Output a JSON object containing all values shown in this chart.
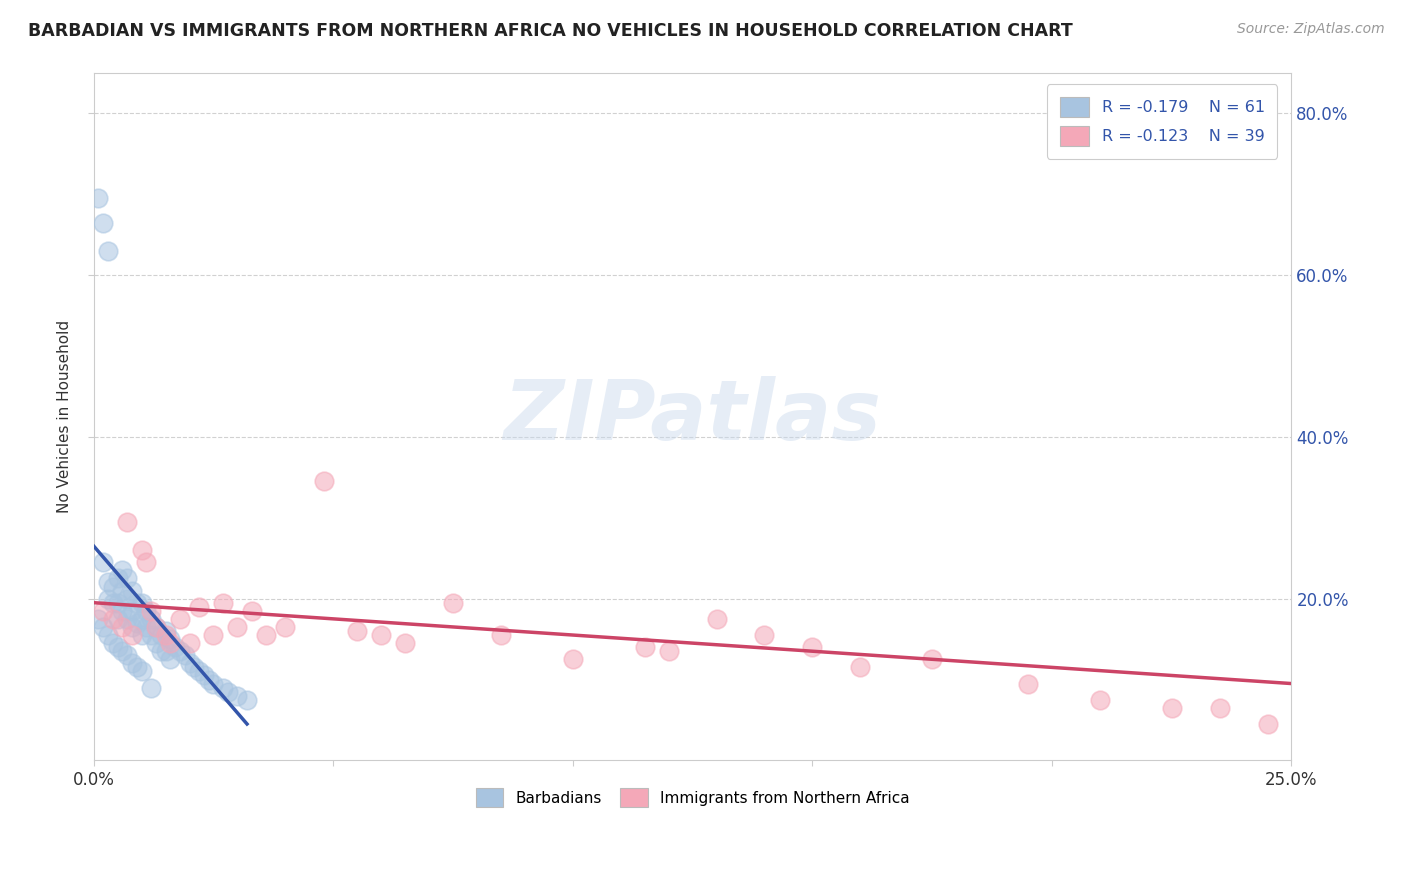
{
  "title": "BARBADIAN VS IMMIGRANTS FROM NORTHERN AFRICA NO VEHICLES IN HOUSEHOLD CORRELATION CHART",
  "source": "Source: ZipAtlas.com",
  "ylabel": "No Vehicles in Household",
  "xlim": [
    0.0,
    0.25
  ],
  "ylim": [
    0.0,
    0.85
  ],
  "xticks": [
    0.0,
    0.05,
    0.1,
    0.15,
    0.2,
    0.25
  ],
  "yticks": [
    0.2,
    0.4,
    0.6,
    0.8
  ],
  "ytick_labels": [
    "20.0%",
    "40.0%",
    "60.0%",
    "80.0%"
  ],
  "xtick_labels": [
    "0.0%",
    "",
    "",
    "",
    "",
    "25.0%"
  ],
  "legend_R1": "R = -0.179",
  "legend_N1": "N = 61",
  "legend_R2": "R = -0.123",
  "legend_N2": "N = 39",
  "color_barbadian": "#a8c4e0",
  "color_immigrant": "#f4a8b8",
  "line_color_barbadian": "#3355aa",
  "line_color_immigrant": "#cc4466",
  "background_color": "#ffffff",
  "grid_color": "#cccccc",
  "barbadian_scatter_x": [
    0.001,
    0.002,
    0.002,
    0.003,
    0.003,
    0.003,
    0.004,
    0.004,
    0.005,
    0.005,
    0.005,
    0.006,
    0.006,
    0.006,
    0.007,
    0.007,
    0.007,
    0.008,
    0.008,
    0.008,
    0.009,
    0.009,
    0.01,
    0.01,
    0.01,
    0.011,
    0.011,
    0.012,
    0.012,
    0.013,
    0.013,
    0.014,
    0.014,
    0.015,
    0.015,
    0.016,
    0.016,
    0.017,
    0.018,
    0.019,
    0.02,
    0.021,
    0.022,
    0.023,
    0.024,
    0.025,
    0.027,
    0.028,
    0.03,
    0.032,
    0.001,
    0.002,
    0.003,
    0.004,
    0.005,
    0.006,
    0.007,
    0.008,
    0.009,
    0.01,
    0.012
  ],
  "barbadian_scatter_y": [
    0.695,
    0.665,
    0.245,
    0.63,
    0.22,
    0.2,
    0.215,
    0.195,
    0.225,
    0.195,
    0.175,
    0.235,
    0.21,
    0.185,
    0.225,
    0.2,
    0.175,
    0.21,
    0.185,
    0.165,
    0.195,
    0.17,
    0.195,
    0.175,
    0.155,
    0.185,
    0.165,
    0.175,
    0.155,
    0.165,
    0.145,
    0.155,
    0.135,
    0.16,
    0.135,
    0.15,
    0.125,
    0.14,
    0.135,
    0.13,
    0.12,
    0.115,
    0.11,
    0.105,
    0.1,
    0.095,
    0.09,
    0.085,
    0.08,
    0.075,
    0.175,
    0.165,
    0.155,
    0.145,
    0.14,
    0.135,
    0.13,
    0.12,
    0.115,
    0.11,
    0.09
  ],
  "immigrant_scatter_x": [
    0.002,
    0.004,
    0.006,
    0.007,
    0.008,
    0.01,
    0.011,
    0.012,
    0.013,
    0.015,
    0.016,
    0.018,
    0.02,
    0.022,
    0.025,
    0.027,
    0.03,
    0.033,
    0.036,
    0.04,
    0.048,
    0.055,
    0.06,
    0.065,
    0.075,
    0.085,
    0.1,
    0.115,
    0.12,
    0.13,
    0.14,
    0.15,
    0.16,
    0.175,
    0.195,
    0.21,
    0.225,
    0.235,
    0.245
  ],
  "immigrant_scatter_y": [
    0.185,
    0.175,
    0.165,
    0.295,
    0.155,
    0.26,
    0.245,
    0.185,
    0.165,
    0.155,
    0.145,
    0.175,
    0.145,
    0.19,
    0.155,
    0.195,
    0.165,
    0.185,
    0.155,
    0.165,
    0.345,
    0.16,
    0.155,
    0.145,
    0.195,
    0.155,
    0.125,
    0.14,
    0.135,
    0.175,
    0.155,
    0.14,
    0.115,
    0.125,
    0.095,
    0.075,
    0.065,
    0.065,
    0.045
  ],
  "blue_line_x": [
    0.0,
    0.032
  ],
  "blue_line_y": [
    0.265,
    0.045
  ],
  "pink_line_x": [
    0.0,
    0.25
  ],
  "pink_line_y": [
    0.195,
    0.095
  ]
}
